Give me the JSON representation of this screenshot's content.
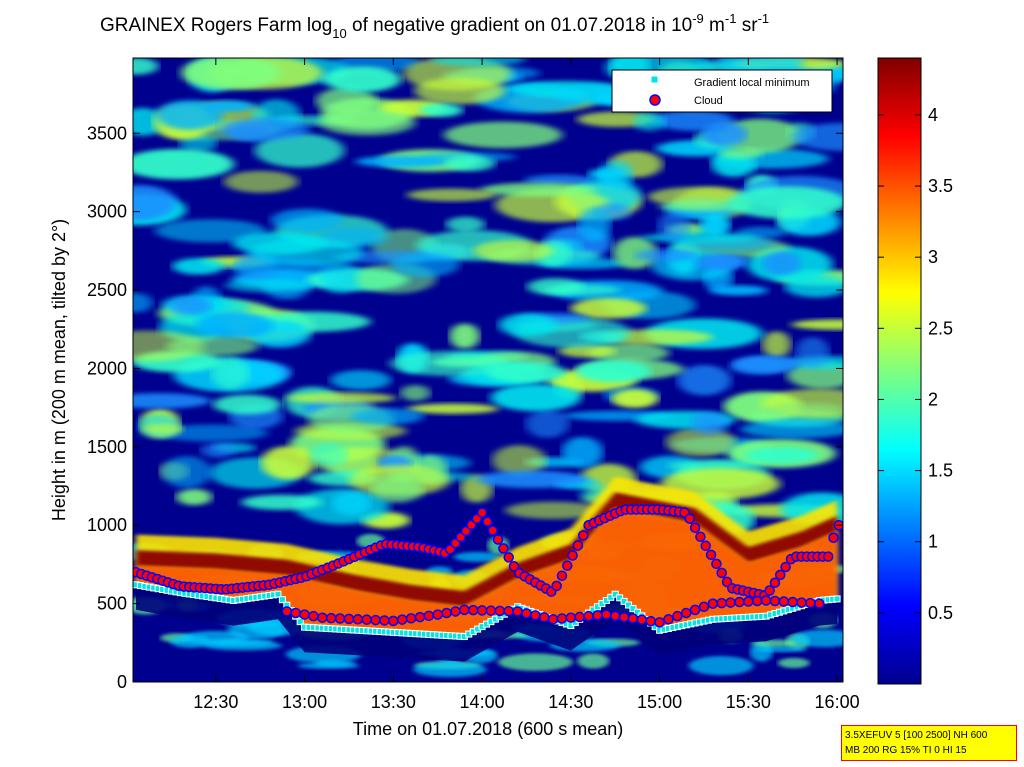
{
  "chart_data": {
    "type": "heatmap",
    "title": {
      "prefix": "GRAINEX Rogers Farm log",
      "log_sub": "10",
      "middle": " of negative gradient on 01.07.2018 in 10",
      "exp1": "-9",
      "unit1": " m",
      "exp2": "-1",
      "unit2": " sr",
      "exp3": "-1"
    },
    "xlabel": "Time on 01.07.2018 (600 s mean)",
    "ylabel": "Height in m (200 m mean, tilted by 2°)",
    "x_ticks": [
      "12:30",
      "13:00",
      "13:30",
      "14:00",
      "14:30",
      "15:00",
      "15:30",
      "16:00"
    ],
    "y_ticks": [
      "0",
      "500",
      "1000",
      "1500",
      "2000",
      "2500",
      "3000",
      "3500"
    ],
    "xlim": [
      "12:02",
      "16:02"
    ],
    "ylim": [
      0,
      3980
    ],
    "colorbar": {
      "ticks": [
        "0.5",
        "1",
        "1.5",
        "2",
        "2.5",
        "3",
        "3.5",
        "4"
      ],
      "range": [
        0,
        4.4
      ],
      "colormap": "jet"
    },
    "legend": {
      "placement": "top-right",
      "entries": [
        {
          "label": "Gradient local minimum",
          "marker": "square",
          "fill": "#00e5e5",
          "edge": "#ffffff"
        },
        {
          "label": "Cloud",
          "marker": "circle",
          "fill": "#ff0000",
          "edge": "#0000ff"
        }
      ]
    },
    "layers": [
      {
        "name": "low band",
        "values": [
          [
            12.05,
            780
          ],
          [
            12.5,
            760
          ],
          [
            12.9,
            720
          ],
          [
            13.3,
            620
          ],
          [
            13.6,
            560
          ],
          [
            13.9,
            520
          ],
          [
            14.2,
            700
          ],
          [
            14.5,
            820
          ],
          [
            14.75,
            1150
          ],
          [
            15.2,
            1050
          ],
          [
            15.5,
            800
          ],
          [
            15.8,
            900
          ],
          [
            16.0,
            1000
          ]
        ]
      },
      {
        "name": "Gradient local minimum",
        "values": [
          [
            12.05,
            620
          ],
          [
            12.3,
            570
          ],
          [
            12.6,
            520
          ],
          [
            12.85,
            560
          ],
          [
            13.0,
            350
          ],
          [
            13.3,
            330
          ],
          [
            13.6,
            310
          ],
          [
            13.9,
            290
          ],
          [
            14.2,
            480
          ],
          [
            14.5,
            360
          ],
          [
            14.75,
            560
          ],
          [
            15.0,
            330
          ],
          [
            15.3,
            400
          ],
          [
            15.6,
            420
          ],
          [
            15.9,
            520
          ],
          [
            16.0,
            530
          ]
        ]
      },
      {
        "name": "Cloud",
        "values": [
          [
            12.05,
            700
          ],
          [
            12.3,
            610
          ],
          [
            12.55,
            590
          ],
          [
            12.8,
            620
          ],
          [
            13.0,
            670
          ],
          [
            13.2,
            760
          ],
          [
            13.45,
            880
          ],
          [
            13.65,
            860
          ],
          [
            13.8,
            820
          ],
          [
            14.0,
            1080
          ],
          [
            14.2,
            700
          ],
          [
            14.4,
            570
          ],
          [
            14.6,
            1000
          ],
          [
            14.8,
            1100
          ],
          [
            15.0,
            1100
          ],
          [
            15.15,
            1080
          ],
          [
            15.4,
            600
          ],
          [
            15.6,
            550
          ],
          [
            15.75,
            800
          ],
          [
            15.95,
            800
          ],
          [
            16.0,
            1000
          ]
        ]
      },
      {
        "name": "Cloud lower",
        "values": [
          [
            12.9,
            450
          ],
          [
            13.1,
            410
          ],
          [
            13.3,
            400
          ],
          [
            13.5,
            390
          ],
          [
            13.75,
            430
          ],
          [
            13.9,
            460
          ],
          [
            14.2,
            450
          ],
          [
            14.4,
            400
          ],
          [
            14.7,
            430
          ],
          [
            15.0,
            380
          ],
          [
            15.3,
            500
          ],
          [
            15.6,
            520
          ],
          [
            15.9,
            500
          ]
        ]
      }
    ],
    "grid": false
  },
  "info_box": {
    "line1": "3.5XEFUV 5 [100 2500] NH 600",
    "line2": "MB 200 RG 15% TI 0 HI 15"
  }
}
